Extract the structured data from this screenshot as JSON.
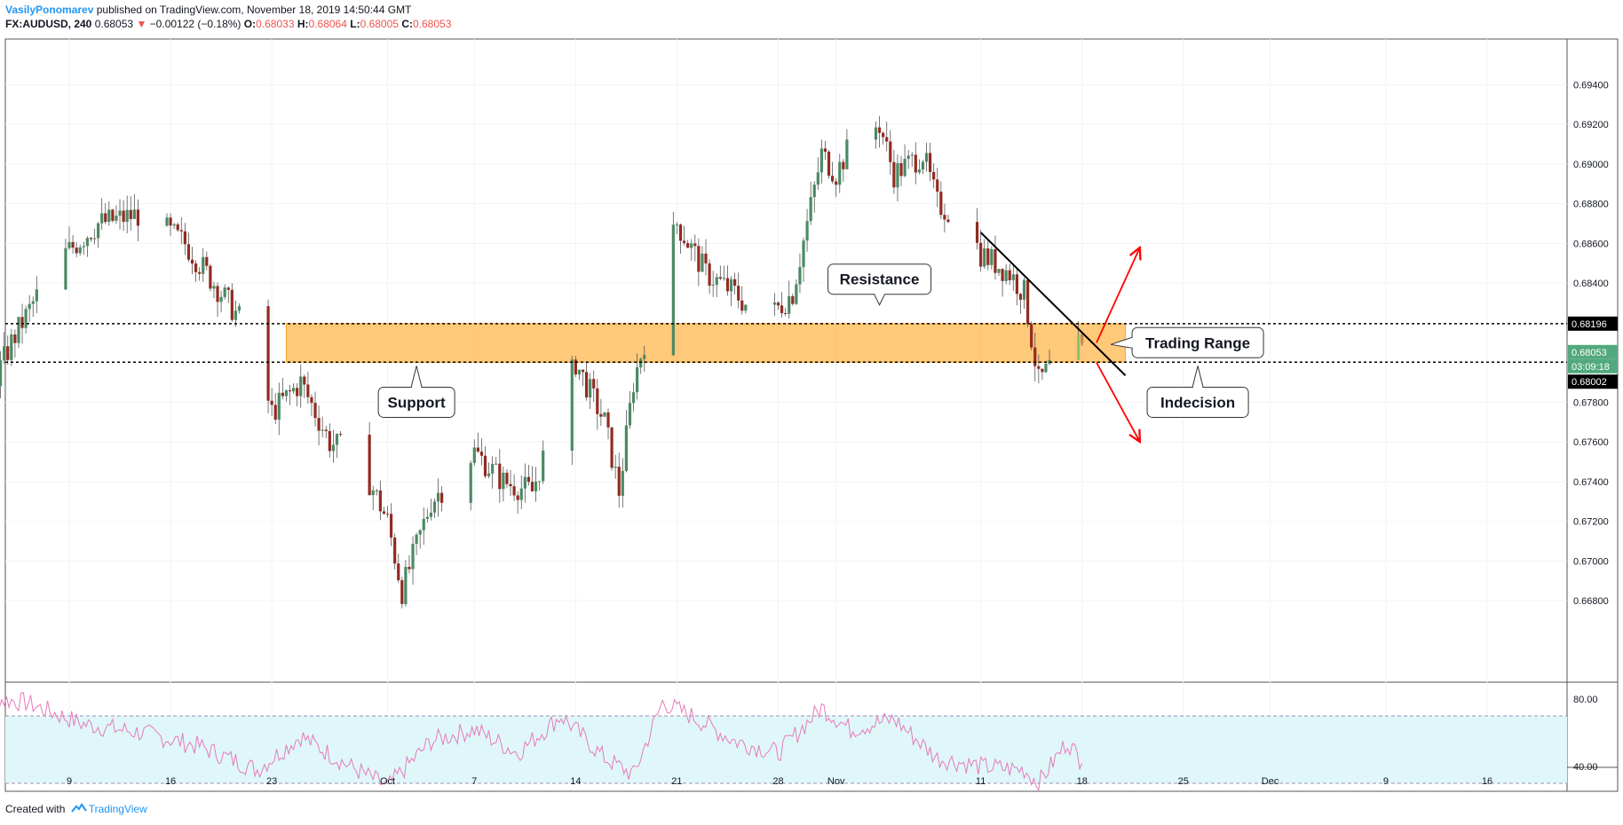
{
  "header": {
    "author": "VasilyPonomarev",
    "published": "published on TradingView.com, November 18, 2019 14:50:44 GMT",
    "symbol": "FX:AUDUSD, 240",
    "last": "0.68053",
    "change_arrow": "▼",
    "change": "−0.00122 (−0.18%)",
    "o_label": "O:",
    "o": "0.68033",
    "h_label": "H:",
    "h": "0.68064",
    "l_label": "L:",
    "l": "0.68005",
    "c_label": "C:",
    "c": "0.68053"
  },
  "footer": {
    "created": "Created with",
    "brand": "TradingView"
  },
  "colors": {
    "up": "#4a8a64",
    "down": "#922b21",
    "zone": "#ffb74d",
    "rsi_line": "#e57bb9",
    "rsi_band": "#e0f7fa",
    "arrow": "#ff0000",
    "trend": "#000000",
    "green_tag": "#53a97e"
  },
  "chart_data": [
    {
      "type": "candlestick",
      "symbol": "FX:AUDUSD",
      "interval": "240",
      "ylim": [
        0.666,
        0.695
      ],
      "y_ticks": [
        "0.69400",
        "0.69200",
        "0.69000",
        "0.68800",
        "0.68600",
        "0.68400",
        "0.67800",
        "0.67600",
        "0.67400",
        "0.67200",
        "0.67000",
        "0.66800"
      ],
      "x_ticks": [
        {
          "label": "9",
          "date": "2019-09-09"
        },
        {
          "label": "16",
          "date": "2019-09-16"
        },
        {
          "label": "23",
          "date": "2019-09-23"
        },
        {
          "label": "Oct",
          "date": "2019-10-01"
        },
        {
          "label": "7",
          "date": "2019-10-07"
        },
        {
          "label": "14",
          "date": "2019-10-14"
        },
        {
          "label": "21",
          "date": "2019-10-21"
        },
        {
          "label": "28",
          "date": "2019-10-28"
        },
        {
          "label": "Nov",
          "date": "2019-11-01"
        },
        {
          "label": "11",
          "date": "2019-11-11"
        },
        {
          "label": "18",
          "date": "2019-11-18"
        },
        {
          "label": "25",
          "date": "2019-11-25"
        },
        {
          "label": "Dec",
          "date": "2019-12-01"
        },
        {
          "label": "9",
          "date": "2019-12-09"
        },
        {
          "label": "16",
          "date": "2019-12-16"
        }
      ],
      "price_path": [
        {
          "date": "2019-09-02",
          "close": 0.676
        },
        {
          "date": "2019-09-05",
          "close": 0.681
        },
        {
          "date": "2019-09-08",
          "close": 0.685
        },
        {
          "date": "2019-09-11",
          "close": 0.687
        },
        {
          "date": "2019-09-14",
          "close": 0.6875
        },
        {
          "date": "2019-09-17",
          "close": 0.686
        },
        {
          "date": "2019-09-19",
          "close": 0.684
        },
        {
          "date": "2019-09-21",
          "close": 0.682
        },
        {
          "date": "2019-09-23",
          "close": 0.6775
        },
        {
          "date": "2019-09-25",
          "close": 0.679
        },
        {
          "date": "2019-09-27",
          "close": 0.676
        },
        {
          "date": "2019-09-29",
          "close": 0.6752
        },
        {
          "date": "2019-10-01",
          "close": 0.672
        },
        {
          "date": "2019-10-02",
          "close": 0.6685
        },
        {
          "date": "2019-10-04",
          "close": 0.673
        },
        {
          "date": "2019-10-07",
          "close": 0.6755
        },
        {
          "date": "2019-10-09",
          "close": 0.674
        },
        {
          "date": "2019-10-11",
          "close": 0.6735
        },
        {
          "date": "2019-10-13",
          "close": 0.678
        },
        {
          "date": "2019-10-14",
          "close": 0.68
        },
        {
          "date": "2019-10-16",
          "close": 0.677
        },
        {
          "date": "2019-10-17",
          "close": 0.6735
        },
        {
          "date": "2019-10-18",
          "close": 0.679
        },
        {
          "date": "2019-10-20",
          "close": 0.6845
        },
        {
          "date": "2019-10-21",
          "close": 0.687
        },
        {
          "date": "2019-10-23",
          "close": 0.6845
        },
        {
          "date": "2019-10-25",
          "close": 0.6835
        },
        {
          "date": "2019-10-27",
          "close": 0.682
        },
        {
          "date": "2019-10-29",
          "close": 0.6835
        },
        {
          "date": "2019-10-30",
          "close": 0.687
        },
        {
          "date": "2019-10-31",
          "close": 0.6905
        },
        {
          "date": "2019-11-01",
          "close": 0.6895
        },
        {
          "date": "2019-11-02",
          "close": 0.691
        },
        {
          "date": "2019-11-04",
          "close": 0.692
        },
        {
          "date": "2019-11-05",
          "close": 0.6895
        },
        {
          "date": "2019-11-07",
          "close": 0.6905
        },
        {
          "date": "2019-11-08",
          "close": 0.688
        },
        {
          "date": "2019-11-10",
          "close": 0.687
        },
        {
          "date": "2019-11-11",
          "close": 0.6855
        },
        {
          "date": "2019-11-12",
          "close": 0.685
        },
        {
          "date": "2019-11-13",
          "close": 0.6845
        },
        {
          "date": "2019-11-14",
          "close": 0.6835
        },
        {
          "date": "2019-11-15",
          "close": 0.679
        },
        {
          "date": "2019-11-16",
          "close": 0.68
        },
        {
          "date": "2019-11-17",
          "close": 0.6815
        },
        {
          "date": "2019-11-18",
          "close": 0.6805
        }
      ],
      "last_price": 0.68053,
      "price_labels": [
        {
          "value": 0.68196,
          "text": "0.68196"
        },
        {
          "value": 0.68053,
          "text": "0.68053"
        },
        {
          "value": 0.68002,
          "text": "0.68002"
        }
      ],
      "countdown": "03:09:18",
      "horizontal_lines": [
        0.68196,
        0.68002
      ],
      "zone": {
        "from_date": "2019-09-24",
        "to_date": "2019-11-21",
        "low": 0.68002,
        "high": 0.68196
      },
      "trendline": [
        {
          "date": "2019-11-11",
          "price": 0.68655
        },
        {
          "date": "2019-11-21",
          "price": 0.67935
        }
      ],
      "arrows": [
        {
          "from": {
            "date": "2019-11-19",
            "price": 0.681
          },
          "to": {
            "date": "2019-11-22",
            "price": 0.6858
          }
        },
        {
          "from": {
            "date": "2019-11-19",
            "price": 0.68
          },
          "to": {
            "date": "2019-11-22",
            "price": 0.676
          }
        }
      ],
      "callouts": [
        {
          "text": "Resistance",
          "date": "2019-11-04",
          "price": 0.6842,
          "pointer": "down"
        },
        {
          "text": "Support",
          "date": "2019-10-03",
          "price": 0.678,
          "pointer": "up"
        },
        {
          "text": "Trading Range",
          "date": "2019-11-26",
          "price": 0.681,
          "pointer": "left"
        },
        {
          "text": "Indecision",
          "date": "2019-11-26",
          "price": 0.678,
          "pointer": "up"
        }
      ]
    },
    {
      "type": "line",
      "indicator": "RSI",
      "ylim": [
        25,
        95
      ],
      "y_ticks": [
        "80.00",
        "40.00"
      ],
      "bands": [
        30,
        70
      ],
      "path": [
        {
          "date": "2019-09-02",
          "value": 82
        },
        {
          "date": "2019-09-06",
          "value": 78
        },
        {
          "date": "2019-09-10",
          "value": 65
        },
        {
          "date": "2019-09-14",
          "value": 60
        },
        {
          "date": "2019-09-18",
          "value": 52
        },
        {
          "date": "2019-09-22",
          "value": 38
        },
        {
          "date": "2019-09-25",
          "value": 58
        },
        {
          "date": "2019-09-28",
          "value": 42
        },
        {
          "date": "2019-10-01",
          "value": 28
        },
        {
          "date": "2019-10-04",
          "value": 55
        },
        {
          "date": "2019-10-07",
          "value": 62
        },
        {
          "date": "2019-10-10",
          "value": 48
        },
        {
          "date": "2019-10-13",
          "value": 70
        },
        {
          "date": "2019-10-16",
          "value": 45
        },
        {
          "date": "2019-10-18",
          "value": 35
        },
        {
          "date": "2019-10-20",
          "value": 78
        },
        {
          "date": "2019-10-22",
          "value": 70
        },
        {
          "date": "2019-10-25",
          "value": 55
        },
        {
          "date": "2019-10-28",
          "value": 48
        },
        {
          "date": "2019-10-31",
          "value": 75
        },
        {
          "date": "2019-11-02",
          "value": 62
        },
        {
          "date": "2019-11-05",
          "value": 68
        },
        {
          "date": "2019-11-08",
          "value": 45
        },
        {
          "date": "2019-11-11",
          "value": 40
        },
        {
          "date": "2019-11-14",
          "value": 38
        },
        {
          "date": "2019-11-15",
          "value": 30
        },
        {
          "date": "2019-11-17",
          "value": 55
        },
        {
          "date": "2019-11-18",
          "value": 42
        }
      ]
    }
  ]
}
